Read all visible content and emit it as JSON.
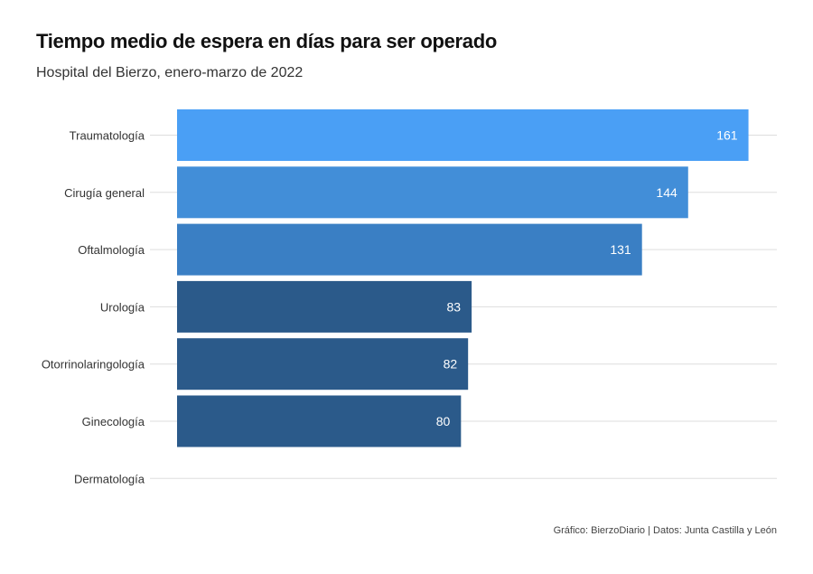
{
  "chart": {
    "title": "Tiempo medio de espera en días para ser operado",
    "subtitle": "Hospital del Bierzo, enero-marzo de 2022",
    "caption": "Gráfico: BierzoDiario | Datos: Junta Castilla y León"
  },
  "chart_data": {
    "type": "bar",
    "orientation": "horizontal",
    "title": "Tiempo medio de espera en días para ser operado",
    "subtitle": "Hospital del Bierzo, enero-marzo de 2022",
    "categories": [
      "Traumatología",
      "Cirugía general",
      "Oftalmología",
      "Urología",
      "Otorrinolaringología",
      "Ginecología",
      "Dermatología"
    ],
    "values": [
      161,
      144,
      131,
      83,
      82,
      80,
      0
    ],
    "data_labels": [
      "161",
      "144",
      "131",
      "83",
      "82",
      "80",
      ""
    ],
    "xlabel": "",
    "ylabel": "",
    "xlim": [
      0,
      169
    ],
    "grid": "horizontal lines at category positions",
    "legend": "none",
    "bar_colors": [
      "#4a9ff5",
      "#428ed8",
      "#3a7fc4",
      "#2b5a8a",
      "#2b5a8a",
      "#2b5a8a",
      "#2b5a8a"
    ],
    "value_label_color": "#ffffff",
    "gridline_color": "#dddddd"
  }
}
